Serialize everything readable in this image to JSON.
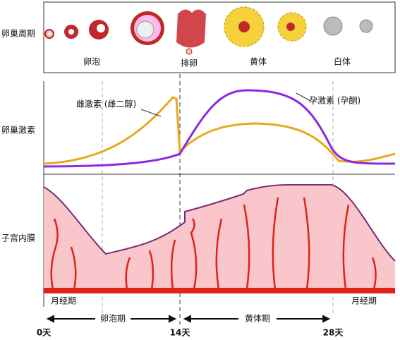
{
  "ovarian_cycle": {
    "label": "卵巢周期",
    "stages": [
      "卵泡",
      "排卵",
      "黄体",
      "白体"
    ]
  },
  "hormones": {
    "label": "卵巢激素",
    "estrogen": "雌激素 (雌二醇)",
    "progesterone": "孕激素 (孕酮)"
  },
  "endometrium": {
    "label": "子宫内膜",
    "phases": [
      "月经期",
      "卵泡期",
      "黄体期",
      "月经期"
    ]
  },
  "days": [
    "0天",
    "14天",
    "28天"
  ]
}
